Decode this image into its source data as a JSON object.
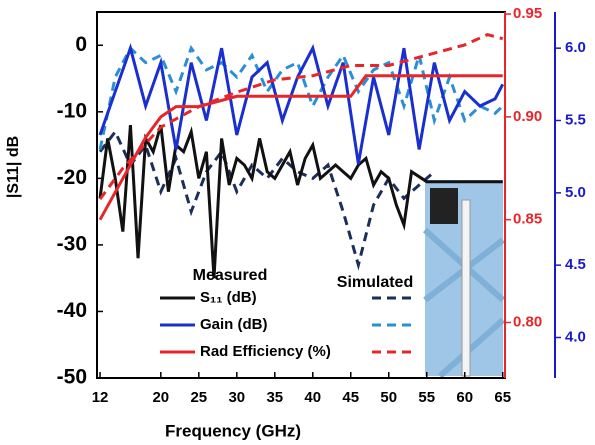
{
  "chart_data": {
    "type": "line",
    "x_label": "Frequency (GHz)",
    "y_label": "|S11| dB",
    "xlim": [
      11.6,
      65.3
    ],
    "xticks": [
      12,
      20,
      25,
      30,
      35,
      40,
      45,
      50,
      55,
      60,
      65
    ],
    "ylim": [
      -50,
      5
    ],
    "yticks": [
      0,
      -10,
      -20,
      -30,
      -40,
      -50
    ],
    "y2lim": [
      0.773,
      0.951
    ],
    "y2ticks": [
      {
        "value": 0.8,
        "label": "0.80"
      },
      {
        "value": 0.85,
        "label": "0.85"
      },
      {
        "value": 0.9,
        "label": "0.90"
      },
      {
        "value": 0.95,
        "label": "0.95"
      }
    ],
    "y2color": "#e8262a",
    "y3lim": [
      3.72,
      6.25
    ],
    "y3ticks": [
      {
        "value": 4,
        "label": "4.0"
      },
      {
        "value": 4.5,
        "label": "4.5"
      },
      {
        "value": 5,
        "label": "5.0"
      },
      {
        "value": 5.5,
        "label": "5.5"
      },
      {
        "value": 6,
        "label": "6.0"
      }
    ],
    "y3color": "#1a1acc",
    "legend_headers": [
      "Measured",
      "Simulated"
    ],
    "series": [
      {
        "name": "S₁₁ (dB)",
        "axis": "y",
        "colors": [
          "#111111",
          "#1c2e5a"
        ],
        "measured": {
          "x": [
            12,
            13,
            14,
            15,
            16,
            17,
            18,
            19,
            20,
            21,
            22,
            23,
            24,
            25,
            26,
            27,
            28,
            29,
            30,
            31,
            32,
            33,
            34,
            35,
            36,
            37,
            38,
            39,
            40,
            41,
            42,
            43,
            44,
            45,
            46,
            47,
            48,
            49,
            50,
            51,
            52,
            53,
            55,
            65
          ],
          "values": [
            -23,
            -14,
            -20,
            -28,
            -12,
            -32,
            -14,
            -16,
            -12,
            -22,
            -15,
            -16,
            -13,
            -20,
            -16,
            -35,
            -14,
            -21,
            -17,
            -18,
            -20,
            -14,
            -19,
            -20,
            -18,
            -16,
            -21,
            -17,
            -15,
            -20,
            -19,
            -18,
            -19,
            -20,
            -18,
            -17,
            -21,
            -19,
            -20,
            -24,
            -27,
            -19,
            -20.5,
            -20.5
          ]
        },
        "simulated": {
          "x": [
            12,
            14,
            16,
            18,
            20,
            22,
            24,
            26,
            28,
            30,
            32,
            34,
            36,
            38,
            40,
            42,
            44,
            46,
            48,
            50,
            52,
            54,
            56
          ],
          "values": [
            -16,
            -13,
            -18,
            -15,
            -22,
            -17,
            -25,
            -19,
            -16,
            -22,
            -18,
            -20,
            -17,
            -19,
            -20,
            -18,
            -25,
            -33,
            -24,
            -20,
            -23,
            -21,
            -19
          ]
        }
      },
      {
        "name": "Gain (dB)",
        "axis": "y3",
        "colors": [
          "#1a2fd0",
          "#2a8fd4"
        ],
        "measured": {
          "x": [
            12,
            14,
            16,
            18,
            20,
            22,
            24,
            26,
            28,
            30,
            32,
            34,
            36,
            38,
            40,
            42,
            44,
            46,
            48,
            50,
            52,
            54,
            56,
            58,
            60,
            62,
            64,
            65
          ],
          "values": [
            5.4,
            5.7,
            6.0,
            5.6,
            5.9,
            5.3,
            5.9,
            5.5,
            6.0,
            5.4,
            5.8,
            5.9,
            5.5,
            5.8,
            6.0,
            5.6,
            5.9,
            5.2,
            5.8,
            5.4,
            6.0,
            5.3,
            5.9,
            5.5,
            5.7,
            5.6,
            5.65,
            5.75
          ]
        },
        "simulated": {
          "x": [
            12,
            14,
            16,
            18,
            20,
            22,
            24,
            26,
            28,
            30,
            32,
            34,
            36,
            38,
            40,
            42,
            44,
            46,
            48,
            50,
            52,
            54,
            56,
            58,
            60,
            62,
            64,
            65
          ],
          "values": [
            5.3,
            5.8,
            6.0,
            5.9,
            5.95,
            5.7,
            6.0,
            5.85,
            5.9,
            5.8,
            5.95,
            5.7,
            5.85,
            5.9,
            5.6,
            5.8,
            5.95,
            5.7,
            5.85,
            5.9,
            5.6,
            5.95,
            5.5,
            5.8,
            5.5,
            5.6,
            5.55,
            5.6
          ]
        }
      },
      {
        "name": "Rad Efficiency (%)",
        "axis": "y2",
        "colors": [
          "#e8262a",
          "#e8262a"
        ],
        "measured": {
          "x": [
            12,
            15,
            18,
            20,
            22,
            25,
            30,
            35,
            40,
            45,
            47,
            50,
            55,
            60,
            65
          ],
          "values": [
            0.85,
            0.87,
            0.89,
            0.9,
            0.905,
            0.905,
            0.91,
            0.91,
            0.91,
            0.91,
            0.92,
            0.92,
            0.92,
            0.92,
            0.92
          ]
        },
        "simulated": {
          "x": [
            12,
            15,
            20,
            25,
            30,
            35,
            40,
            45,
            50,
            55,
            60,
            63,
            65
          ],
          "values": [
            0.86,
            0.875,
            0.895,
            0.905,
            0.912,
            0.918,
            0.92,
            0.925,
            0.925,
            0.93,
            0.935,
            0.94,
            0.938
          ]
        }
      }
    ]
  }
}
